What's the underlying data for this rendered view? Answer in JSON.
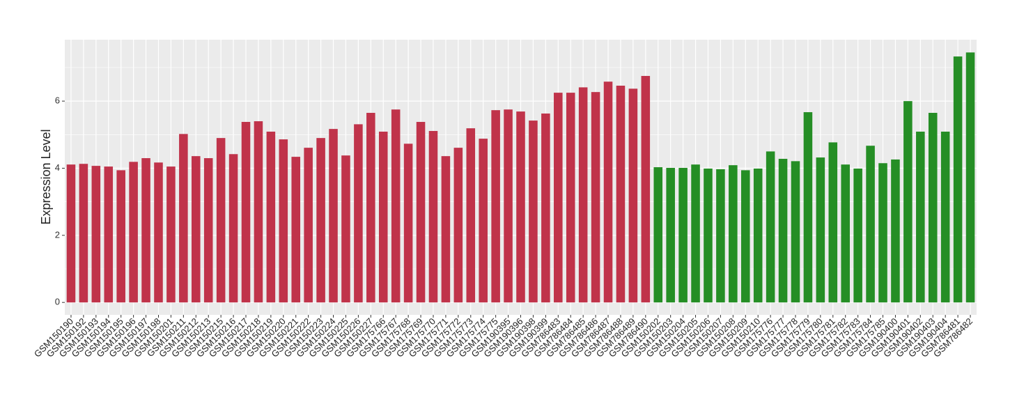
{
  "chart_data": {
    "type": "bar",
    "y_label": "Expression Level",
    "categories": [
      "GSM150190",
      "GSM150192",
      "GSM150193",
      "GSM150194",
      "GSM150195",
      "GSM150196",
      "GSM150197",
      "GSM150198",
      "GSM150201",
      "GSM150211",
      "GSM150212",
      "GSM150213",
      "GSM150215",
      "GSM150216",
      "GSM150217",
      "GSM150218",
      "GSM150219",
      "GSM150220",
      "GSM150221",
      "GSM150222",
      "GSM150223",
      "GSM150224",
      "GSM150225",
      "GSM150226",
      "GSM150227",
      "GSM175766",
      "GSM175767",
      "GSM175768",
      "GSM175769",
      "GSM175770",
      "GSM175771",
      "GSM175772",
      "GSM175773",
      "GSM175774",
      "GSM175775",
      "GSM190395",
      "GSM190396",
      "GSM190398",
      "GSM190399",
      "GSM786483",
      "GSM786484",
      "GSM786485",
      "GSM786486",
      "GSM786487",
      "GSM786488",
      "GSM786489",
      "GSM786490",
      "GSM150202",
      "GSM150203",
      "GSM150204",
      "GSM150205",
      "GSM150206",
      "GSM150207",
      "GSM150208",
      "GSM150209",
      "GSM150210",
      "GSM175776",
      "GSM175777",
      "GSM175778",
      "GSM175779",
      "GSM175780",
      "GSM175781",
      "GSM175782",
      "GSM175783",
      "GSM175784",
      "GSM175785",
      "GSM190400",
      "GSM190401",
      "GSM190402",
      "GSM190403",
      "GSM190404",
      "GSM786481",
      "GSM786482"
    ],
    "values": [
      4.11,
      4.13,
      4.07,
      4.05,
      3.94,
      4.19,
      4.3,
      4.17,
      4.05,
      5.02,
      4.36,
      4.3,
      4.9,
      4.42,
      5.38,
      5.4,
      5.09,
      4.86,
      4.34,
      4.61,
      4.9,
      5.17,
      4.38,
      5.31,
      5.65,
      5.09,
      5.75,
      4.73,
      5.38,
      5.11,
      4.36,
      4.61,
      5.19,
      4.88,
      5.73,
      5.75,
      5.69,
      5.42,
      5.63,
      6.25,
      6.25,
      6.41,
      6.27,
      6.58,
      6.46,
      6.37,
      6.75,
      4.03,
      4.01,
      4.01,
      4.11,
      3.99,
      3.97,
      4.09,
      3.94,
      3.99,
      4.5,
      4.28,
      4.21,
      5.67,
      4.32,
      4.77,
      4.11,
      3.99,
      4.67,
      4.15,
      4.26,
      6.0,
      5.09,
      5.65,
      5.09,
      7.33,
      7.45
    ],
    "colors": [
      "#c0334a",
      "#c0334a",
      "#c0334a",
      "#c0334a",
      "#c0334a",
      "#c0334a",
      "#c0334a",
      "#c0334a",
      "#c0334a",
      "#c0334a",
      "#c0334a",
      "#c0334a",
      "#c0334a",
      "#c0334a",
      "#c0334a",
      "#c0334a",
      "#c0334a",
      "#c0334a",
      "#c0334a",
      "#c0334a",
      "#c0334a",
      "#c0334a",
      "#c0334a",
      "#c0334a",
      "#c0334a",
      "#c0334a",
      "#c0334a",
      "#c0334a",
      "#c0334a",
      "#c0334a",
      "#c0334a",
      "#c0334a",
      "#c0334a",
      "#c0334a",
      "#c0334a",
      "#c0334a",
      "#c0334a",
      "#c0334a",
      "#c0334a",
      "#c0334a",
      "#c0334a",
      "#c0334a",
      "#c0334a",
      "#c0334a",
      "#c0334a",
      "#c0334a",
      "#c0334a",
      "#258e25",
      "#258e25",
      "#258e25",
      "#258e25",
      "#258e25",
      "#258e25",
      "#258e25",
      "#258e25",
      "#258e25",
      "#258e25",
      "#258e25",
      "#258e25",
      "#258e25",
      "#258e25",
      "#258e25",
      "#258e25",
      "#258e25",
      "#258e25",
      "#258e25",
      "#258e25",
      "#258e25",
      "#258e25",
      "#258e25",
      "#258e25",
      "#258e25",
      "#258e25"
    ],
    "ylim": [
      -0.37,
      7.83
    ],
    "yticks": [
      0,
      2,
      4,
      6
    ],
    "grid": true
  }
}
